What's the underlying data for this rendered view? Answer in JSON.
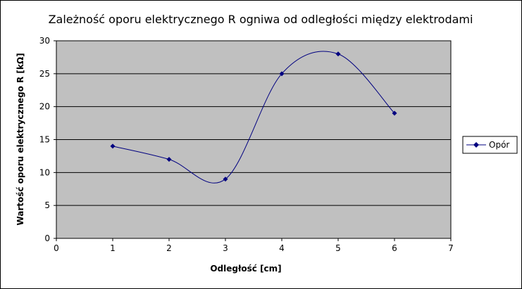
{
  "chart_data": {
    "type": "line",
    "title": "Zależność oporu elektrycznego R ogniwa od odległości między elektrodami",
    "xlabel": "Odległość [cm]",
    "ylabel": "Wartość oporu elektrycznego R [kΩ]",
    "xlim": [
      0,
      7
    ],
    "ylim": [
      0,
      30
    ],
    "x_ticks": [
      "0",
      "1",
      "2",
      "3",
      "4",
      "5",
      "6",
      "7"
    ],
    "y_ticks": [
      "0",
      "5",
      "10",
      "15",
      "20",
      "25",
      "30"
    ],
    "smoothed": true,
    "grid": "horizontal",
    "plot_background": "#c0c0c0",
    "legend_position": "right",
    "series": [
      {
        "name": "Opór",
        "color": "#000080",
        "marker": "diamond",
        "x": [
          1,
          2,
          3,
          4,
          5,
          6
        ],
        "values": [
          14,
          12,
          9,
          25,
          28,
          19
        ]
      }
    ]
  }
}
